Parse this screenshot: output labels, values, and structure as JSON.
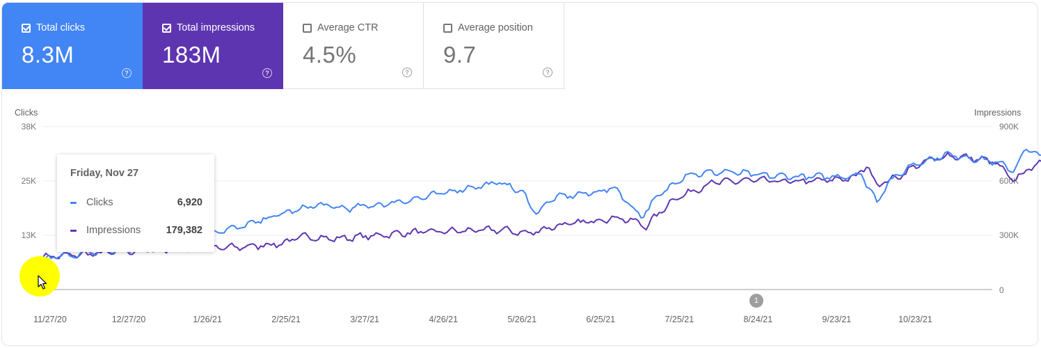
{
  "metric_cards": [
    {
      "key": "clicks",
      "label": "Total clicks",
      "value": "8.3M",
      "checked": true,
      "color": "#4285f4"
    },
    {
      "key": "impressions",
      "label": "Total impressions",
      "value": "183M",
      "checked": true,
      "color": "#5e35b1"
    },
    {
      "key": "ctr",
      "label": "Average CTR",
      "value": "4.5%",
      "checked": false
    },
    {
      "key": "position",
      "label": "Average position",
      "value": "9.7",
      "checked": false
    }
  ],
  "tooltip": {
    "date": "Friday, Nov 27",
    "rows": [
      {
        "name": "Clicks",
        "value": "6,920",
        "color": "#4285f4"
      },
      {
        "name": "Impressions",
        "value": "179,382",
        "color": "#5e35b1"
      }
    ]
  },
  "annotation": {
    "label": "1",
    "date_index": 272
  },
  "chart_data": {
    "type": "line",
    "x_start": "2020-11-27",
    "x_end": "2021-11-24",
    "xticks": [
      "11/27/20",
      "12/27/20",
      "1/26/21",
      "2/25/21",
      "3/27/21",
      "4/26/21",
      "5/26/21",
      "6/25/21",
      "7/25/21",
      "8/24/21",
      "9/23/21",
      "10/23/21"
    ],
    "y_left": {
      "label": "Clicks",
      "ticks": [
        "0",
        "13K",
        "25K",
        "38K"
      ],
      "max": 38000
    },
    "y_right": {
      "label": "Impressions",
      "ticks": [
        "0",
        "300K",
        "600K",
        "900K"
      ],
      "max": 900000
    },
    "grid": true,
    "series": [
      {
        "name": "Clicks",
        "axis": "left",
        "color": "#4285f4",
        "keypoints": [
          [
            0,
            6920
          ],
          [
            7,
            7900
          ],
          [
            14,
            8300
          ],
          [
            21,
            8700
          ],
          [
            30,
            9200
          ],
          [
            45,
            9900
          ],
          [
            60,
            10600
          ],
          [
            61,
            13100
          ],
          [
            75,
            14500
          ],
          [
            90,
            17500
          ],
          [
            105,
            19800
          ],
          [
            115,
            18900
          ],
          [
            130,
            19900
          ],
          [
            145,
            21500
          ],
          [
            160,
            23500
          ],
          [
            175,
            25000
          ],
          [
            183,
            22500
          ],
          [
            188,
            17800
          ],
          [
            195,
            21500
          ],
          [
            210,
            22600
          ],
          [
            218,
            23800
          ],
          [
            222,
            21000
          ],
          [
            228,
            17000
          ],
          [
            235,
            22000
          ],
          [
            245,
            26800
          ],
          [
            260,
            27500
          ],
          [
            275,
            26600
          ],
          [
            290,
            26300
          ],
          [
            305,
            26400
          ],
          [
            312,
            26900
          ],
          [
            318,
            20500
          ],
          [
            322,
            24800
          ],
          [
            332,
            29300
          ],
          [
            345,
            31500
          ],
          [
            356,
            30500
          ],
          [
            363,
            29800
          ],
          [
            370,
            27800
          ],
          [
            375,
            32800
          ],
          [
            380,
            31300
          ],
          [
            395,
            30800
          ],
          [
            410,
            30800
          ],
          [
            420,
            29800
          ],
          [
            435,
            30800
          ],
          [
            445,
            31800
          ],
          [
            455,
            32000
          ],
          [
            462,
            31700
          ]
        ]
      },
      {
        "name": "Impressions",
        "axis": "right",
        "color": "#5e35b1",
        "keypoints": [
          [
            0,
            179382
          ],
          [
            30,
            209000
          ],
          [
            60,
            232000
          ],
          [
            61,
            226000
          ],
          [
            75,
            235000
          ],
          [
            90,
            252000
          ],
          [
            100,
            295000
          ],
          [
            110,
            280000
          ],
          [
            120,
            290000
          ],
          [
            140,
            315000
          ],
          [
            160,
            325000
          ],
          [
            175,
            330000
          ],
          [
            185,
            310000
          ],
          [
            195,
            350000
          ],
          [
            210,
            380000
          ],
          [
            218,
            398000
          ],
          [
            225,
            380000
          ],
          [
            230,
            350000
          ],
          [
            240,
            495000
          ],
          [
            255,
            590000
          ],
          [
            270,
            605000
          ],
          [
            285,
            595000
          ],
          [
            300,
            605000
          ],
          [
            310,
            620000
          ],
          [
            314,
            690000
          ],
          [
            318,
            580000
          ],
          [
            325,
            615000
          ],
          [
            335,
            700000
          ],
          [
            345,
            740000
          ],
          [
            355,
            725000
          ],
          [
            363,
            705000
          ],
          [
            370,
            600000
          ],
          [
            378,
            690000
          ],
          [
            390,
            700000
          ],
          [
            405,
            705000
          ],
          [
            420,
            705000
          ],
          [
            435,
            740000
          ],
          [
            445,
            760000
          ],
          [
            455,
            765000
          ],
          [
            462,
            760000
          ]
        ]
      }
    ]
  },
  "cursor_icon": "pointer-arrow-icon"
}
